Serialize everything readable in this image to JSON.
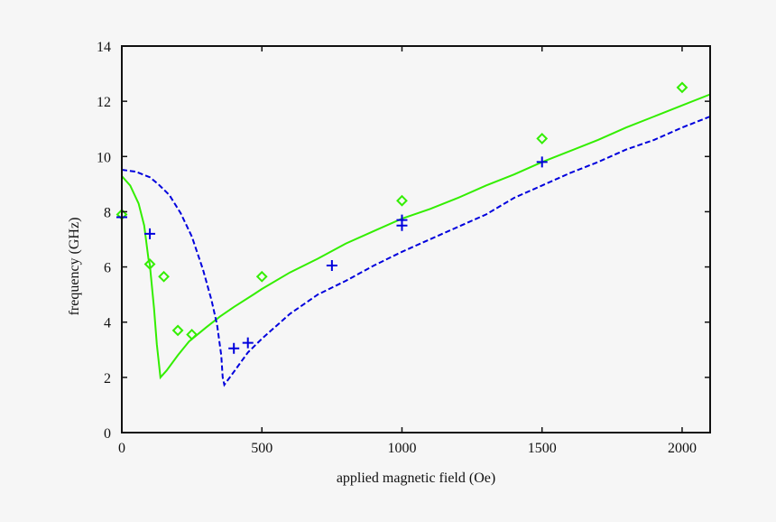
{
  "chart_data": {
    "type": "line",
    "title": "",
    "xlabel": "applied magnetic field (Oe)",
    "ylabel": "frequency (GHz)",
    "xlim": [
      0,
      2100
    ],
    "ylim": [
      0,
      14
    ],
    "xticks": [
      0,
      500,
      1000,
      1500,
      2000
    ],
    "yticks": [
      0,
      2,
      4,
      6,
      8,
      10,
      12,
      14
    ],
    "grid": false,
    "legend": null,
    "series": [
      {
        "name": "model (green, solid)",
        "kind": "line",
        "color": "#33ee00",
        "dash": "",
        "points": [
          [
            0,
            9.29
          ],
          [
            30,
            8.95
          ],
          [
            60,
            8.3
          ],
          [
            80,
            7.5
          ],
          [
            95,
            6.3
          ],
          [
            100,
            6.1
          ],
          [
            115,
            4.5
          ],
          [
            125,
            3.2
          ],
          [
            138,
            2.0
          ],
          [
            160,
            2.25
          ],
          [
            200,
            2.8
          ],
          [
            240,
            3.3
          ],
          [
            300,
            3.8
          ],
          [
            350,
            4.2
          ],
          [
            400,
            4.55
          ],
          [
            470,
            5.0
          ],
          [
            500,
            5.2
          ],
          [
            600,
            5.8
          ],
          [
            700,
            6.3
          ],
          [
            800,
            6.85
          ],
          [
            900,
            7.3
          ],
          [
            1000,
            7.75
          ],
          [
            1100,
            8.1
          ],
          [
            1200,
            8.5
          ],
          [
            1300,
            8.95
          ],
          [
            1400,
            9.35
          ],
          [
            1500,
            9.8
          ],
          [
            1600,
            10.2
          ],
          [
            1700,
            10.6
          ],
          [
            1800,
            11.05
          ],
          [
            1900,
            11.45
          ],
          [
            2000,
            11.85
          ],
          [
            2100,
            12.25
          ]
        ]
      },
      {
        "name": "model (blue, dashed)",
        "kind": "line",
        "color": "#0000dd",
        "dash": "6,3",
        "points": [
          [
            0,
            9.52
          ],
          [
            50,
            9.45
          ],
          [
            100,
            9.25
          ],
          [
            130,
            9.0
          ],
          [
            170,
            8.6
          ],
          [
            210,
            7.95
          ],
          [
            250,
            7.1
          ],
          [
            290,
            5.9
          ],
          [
            320,
            4.8
          ],
          [
            340,
            3.9
          ],
          [
            355,
            2.8
          ],
          [
            360,
            2.0
          ],
          [
            366,
            1.73
          ],
          [
            400,
            2.2
          ],
          [
            450,
            2.9
          ],
          [
            500,
            3.4
          ],
          [
            600,
            4.3
          ],
          [
            700,
            5.0
          ],
          [
            800,
            5.5
          ],
          [
            900,
            6.05
          ],
          [
            1000,
            6.55
          ],
          [
            1100,
            7.0
          ],
          [
            1200,
            7.45
          ],
          [
            1300,
            7.9
          ],
          [
            1400,
            8.5
          ],
          [
            1500,
            8.95
          ],
          [
            1600,
            9.4
          ],
          [
            1700,
            9.8
          ],
          [
            1800,
            10.25
          ],
          [
            1900,
            10.6
          ],
          [
            2000,
            11.05
          ],
          [
            2100,
            11.45
          ]
        ]
      },
      {
        "name": "measured (green diamonds)",
        "kind": "scatter",
        "marker": "diamond",
        "color": "#33ee00",
        "points": [
          [
            0,
            7.9
          ],
          [
            100,
            6.1
          ],
          [
            150,
            5.65
          ],
          [
            200,
            3.7
          ],
          [
            250,
            3.55
          ],
          [
            500,
            5.65
          ],
          [
            1000,
            8.4
          ],
          [
            1500,
            10.65
          ],
          [
            2000,
            12.5
          ]
        ]
      },
      {
        "name": "measured (blue crosses)",
        "kind": "scatter",
        "marker": "plus",
        "color": "#0000dd",
        "points": [
          [
            0,
            7.8
          ],
          [
            100,
            7.2
          ],
          [
            400,
            3.05
          ],
          [
            450,
            3.25
          ],
          [
            750,
            6.05
          ],
          [
            1000,
            7.7
          ],
          [
            1000,
            7.5
          ],
          [
            1500,
            9.8
          ]
        ]
      }
    ]
  },
  "axes": {
    "x_title": "applied magnetic field (Oe)",
    "y_title": "frequency (GHz)"
  }
}
